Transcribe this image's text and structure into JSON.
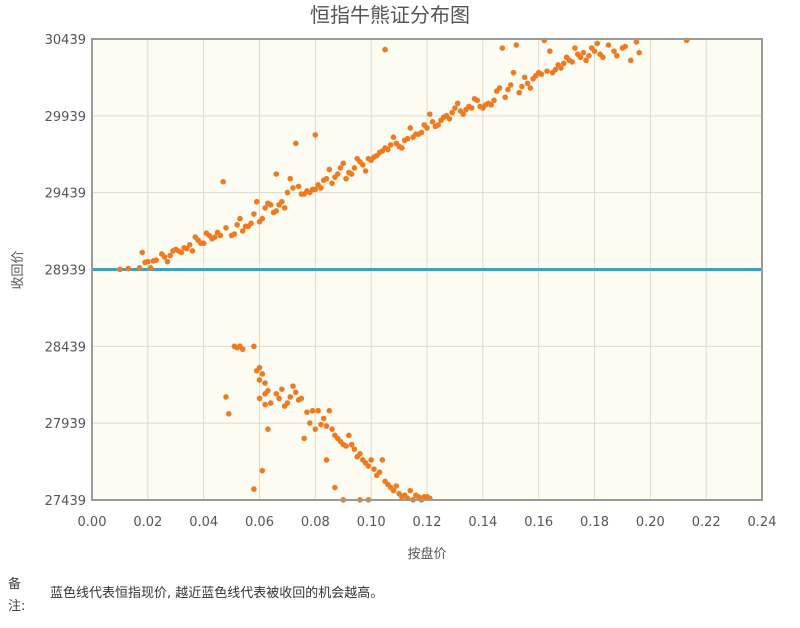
{
  "chart_data": {
    "type": "scatter",
    "title": "恒指牛熊证分布图",
    "xlabel": "按盘价",
    "ylabel": "收回价",
    "xlim": [
      0,
      0.24
    ],
    "ylim": [
      27439,
      30439
    ],
    "xticks": [
      "0.00",
      "0.02",
      "0.04",
      "0.06",
      "0.08",
      "0.10",
      "0.12",
      "0.14",
      "0.16",
      "0.18",
      "0.20",
      "0.22",
      "0.24"
    ],
    "yticks": [
      "27439",
      "27939",
      "28439",
      "28939",
      "29439",
      "29939",
      "30439"
    ],
    "grid": true,
    "reference_line": {
      "y": 28939,
      "color": "#3aa3c9"
    },
    "point_color": "#f07a20",
    "series": [
      {
        "points": [
          [
            0.01,
            28940
          ],
          [
            0.013,
            28945
          ],
          [
            0.018,
            29050
          ],
          [
            0.017,
            28950
          ],
          [
            0.019,
            28985
          ],
          [
            0.02,
            28990
          ],
          [
            0.022,
            28995
          ],
          [
            0.021,
            28950
          ],
          [
            0.023,
            29000
          ],
          [
            0.025,
            29040
          ],
          [
            0.026,
            29020
          ],
          [
            0.027,
            28990
          ],
          [
            0.028,
            29030
          ],
          [
            0.029,
            29060
          ],
          [
            0.03,
            29070
          ],
          [
            0.031,
            29060
          ],
          [
            0.032,
            29050
          ],
          [
            0.033,
            29080
          ],
          [
            0.034,
            29075
          ],
          [
            0.035,
            29100
          ],
          [
            0.036,
            29060
          ],
          [
            0.037,
            29150
          ],
          [
            0.038,
            29130
          ],
          [
            0.039,
            29110
          ],
          [
            0.04,
            29110
          ],
          [
            0.041,
            29175
          ],
          [
            0.042,
            29160
          ],
          [
            0.043,
            29140
          ],
          [
            0.044,
            29150
          ],
          [
            0.045,
            29180
          ],
          [
            0.046,
            29160
          ],
          [
            0.047,
            29510
          ],
          [
            0.048,
            29210
          ],
          [
            0.05,
            29160
          ],
          [
            0.051,
            29170
          ],
          [
            0.052,
            29230
          ],
          [
            0.053,
            29270
          ],
          [
            0.054,
            29190
          ],
          [
            0.055,
            29220
          ],
          [
            0.056,
            29220
          ],
          [
            0.057,
            29240
          ],
          [
            0.058,
            29300
          ],
          [
            0.059,
            29380
          ],
          [
            0.06,
            29250
          ],
          [
            0.061,
            29270
          ],
          [
            0.062,
            29340
          ],
          [
            0.063,
            29370
          ],
          [
            0.064,
            29360
          ],
          [
            0.065,
            29310
          ],
          [
            0.066,
            29320
          ],
          [
            0.067,
            29360
          ],
          [
            0.068,
            29380
          ],
          [
            0.069,
            29340
          ],
          [
            0.07,
            29440
          ],
          [
            0.071,
            29530
          ],
          [
            0.072,
            29470
          ],
          [
            0.073,
            29760
          ],
          [
            0.074,
            29480
          ],
          [
            0.075,
            29430
          ],
          [
            0.076,
            29430
          ],
          [
            0.077,
            29450
          ],
          [
            0.078,
            29440
          ],
          [
            0.079,
            29460
          ],
          [
            0.08,
            29460
          ],
          [
            0.081,
            29490
          ],
          [
            0.082,
            29470
          ],
          [
            0.083,
            29520
          ],
          [
            0.084,
            29530
          ],
          [
            0.085,
            29590
          ],
          [
            0.086,
            29500
          ],
          [
            0.087,
            29540
          ],
          [
            0.088,
            29560
          ],
          [
            0.089,
            29600
          ],
          [
            0.09,
            29630
          ],
          [
            0.091,
            29530
          ],
          [
            0.092,
            29570
          ],
          [
            0.093,
            29560
          ],
          [
            0.094,
            29600
          ],
          [
            0.095,
            29660
          ],
          [
            0.096,
            29640
          ],
          [
            0.097,
            29620
          ],
          [
            0.098,
            29580
          ],
          [
            0.099,
            29660
          ],
          [
            0.1,
            29650
          ],
          [
            0.101,
            29670
          ],
          [
            0.102,
            29680
          ],
          [
            0.103,
            29700
          ],
          [
            0.104,
            29710
          ],
          [
            0.105,
            29730
          ],
          [
            0.106,
            29720
          ],
          [
            0.107,
            29750
          ],
          [
            0.108,
            29800
          ],
          [
            0.109,
            29760
          ],
          [
            0.11,
            29740
          ],
          [
            0.111,
            29730
          ],
          [
            0.112,
            29780
          ],
          [
            0.113,
            29790
          ],
          [
            0.114,
            29860
          ],
          [
            0.115,
            29800
          ],
          [
            0.116,
            29820
          ],
          [
            0.117,
            29820
          ],
          [
            0.118,
            29830
          ],
          [
            0.119,
            29880
          ],
          [
            0.12,
            29860
          ],
          [
            0.121,
            29950
          ],
          [
            0.122,
            29900
          ],
          [
            0.123,
            29870
          ],
          [
            0.124,
            29880
          ],
          [
            0.125,
            29910
          ],
          [
            0.126,
            29930
          ],
          [
            0.127,
            29940
          ],
          [
            0.128,
            29920
          ],
          [
            0.129,
            29960
          ],
          [
            0.13,
            29990
          ],
          [
            0.131,
            30020
          ],
          [
            0.132,
            29970
          ],
          [
            0.133,
            29950
          ],
          [
            0.134,
            29980
          ],
          [
            0.135,
            30000
          ],
          [
            0.136,
            29990
          ],
          [
            0.137,
            30050
          ],
          [
            0.138,
            30040
          ],
          [
            0.139,
            30000
          ],
          [
            0.14,
            29990
          ],
          [
            0.141,
            30010
          ],
          [
            0.142,
            30020
          ],
          [
            0.143,
            30010
          ],
          [
            0.144,
            30040
          ],
          [
            0.145,
            30100
          ],
          [
            0.146,
            30120
          ],
          [
            0.147,
            30380
          ],
          [
            0.148,
            30060
          ],
          [
            0.149,
            30110
          ],
          [
            0.15,
            30140
          ],
          [
            0.151,
            30220
          ],
          [
            0.152,
            30400
          ],
          [
            0.153,
            30090
          ],
          [
            0.154,
            30130
          ],
          [
            0.155,
            30190
          ],
          [
            0.156,
            30150
          ],
          [
            0.157,
            30120
          ],
          [
            0.158,
            30180
          ],
          [
            0.159,
            30200
          ],
          [
            0.16,
            30220
          ],
          [
            0.161,
            30210
          ],
          [
            0.162,
            30430
          ],
          [
            0.163,
            30230
          ],
          [
            0.164,
            30360
          ],
          [
            0.165,
            30220
          ],
          [
            0.166,
            30240
          ],
          [
            0.167,
            30270
          ],
          [
            0.168,
            30250
          ],
          [
            0.169,
            30280
          ],
          [
            0.17,
            30320
          ],
          [
            0.171,
            30300
          ],
          [
            0.172,
            30290
          ],
          [
            0.173,
            30380
          ],
          [
            0.174,
            30340
          ],
          [
            0.175,
            30320
          ],
          [
            0.176,
            30350
          ],
          [
            0.177,
            30300
          ],
          [
            0.178,
            30330
          ],
          [
            0.179,
            30380
          ],
          [
            0.18,
            30360
          ],
          [
            0.181,
            30410
          ],
          [
            0.182,
            30340
          ],
          [
            0.183,
            30320
          ],
          [
            0.185,
            30400
          ],
          [
            0.187,
            30360
          ],
          [
            0.188,
            30330
          ],
          [
            0.19,
            30380
          ],
          [
            0.191,
            30390
          ],
          [
            0.193,
            30300
          ],
          [
            0.195,
            30420
          ],
          [
            0.196,
            30350
          ],
          [
            0.213,
            30430
          ],
          [
            0.105,
            30370
          ],
          [
            0.08,
            29815
          ],
          [
            0.066,
            29560
          ],
          [
            0.048,
            28110
          ],
          [
            0.049,
            28000
          ],
          [
            0.051,
            28439
          ],
          [
            0.052,
            28430
          ],
          [
            0.053,
            28440
          ],
          [
            0.054,
            28420
          ],
          [
            0.058,
            28439
          ],
          [
            0.059,
            28280
          ],
          [
            0.06,
            28300
          ],
          [
            0.061,
            28260
          ],
          [
            0.062,
            28200
          ],
          [
            0.06,
            28220
          ],
          [
            0.062,
            28130
          ],
          [
            0.063,
            28150
          ],
          [
            0.06,
            28100
          ],
          [
            0.062,
            28060
          ],
          [
            0.064,
            28070
          ],
          [
            0.063,
            27900
          ],
          [
            0.066,
            28130
          ],
          [
            0.067,
            28100
          ],
          [
            0.068,
            28160
          ],
          [
            0.069,
            28050
          ],
          [
            0.07,
            28070
          ],
          [
            0.071,
            28110
          ],
          [
            0.072,
            28180
          ],
          [
            0.073,
            28140
          ],
          [
            0.074,
            28090
          ],
          [
            0.075,
            28100
          ],
          [
            0.076,
            27840
          ],
          [
            0.077,
            28010
          ],
          [
            0.078,
            27940
          ],
          [
            0.079,
            28020
          ],
          [
            0.08,
            27900
          ],
          [
            0.081,
            28020
          ],
          [
            0.082,
            27930
          ],
          [
            0.083,
            27970
          ],
          [
            0.084,
            27920
          ],
          [
            0.085,
            28020
          ],
          [
            0.086,
            27900
          ],
          [
            0.087,
            27860
          ],
          [
            0.088,
            27840
          ],
          [
            0.089,
            27820
          ],
          [
            0.09,
            27800
          ],
          [
            0.091,
            27790
          ],
          [
            0.092,
            27860
          ],
          [
            0.093,
            27800
          ],
          [
            0.094,
            27770
          ],
          [
            0.095,
            27720
          ],
          [
            0.096,
            27740
          ],
          [
            0.097,
            27700
          ],
          [
            0.098,
            27680
          ],
          [
            0.099,
            27660
          ],
          [
            0.1,
            27700
          ],
          [
            0.101,
            27640
          ],
          [
            0.102,
            27600
          ],
          [
            0.103,
            27620
          ],
          [
            0.104,
            27700
          ],
          [
            0.105,
            27560
          ],
          [
            0.106,
            27540
          ],
          [
            0.107,
            27520
          ],
          [
            0.108,
            27500
          ],
          [
            0.109,
            27530
          ],
          [
            0.11,
            27480
          ],
          [
            0.111,
            27460
          ],
          [
            0.112,
            27470
          ],
          [
            0.113,
            27450
          ],
          [
            0.114,
            27500
          ],
          [
            0.115,
            27440
          ],
          [
            0.116,
            27470
          ],
          [
            0.117,
            27460
          ],
          [
            0.118,
            27440
          ],
          [
            0.119,
            27460
          ],
          [
            0.12,
            27460
          ],
          [
            0.121,
            27450
          ],
          [
            0.096,
            27440
          ],
          [
            0.099,
            27440
          ],
          [
            0.058,
            27510
          ],
          [
            0.061,
            27630
          ],
          [
            0.084,
            27700
          ],
          [
            0.087,
            27520
          ],
          [
            0.09,
            27440
          ]
        ]
      }
    ]
  },
  "note": {
    "label": "备注:",
    "text": "蓝色线代表恒指现价, 越近蓝色线代表被收回的机会越高。"
  }
}
